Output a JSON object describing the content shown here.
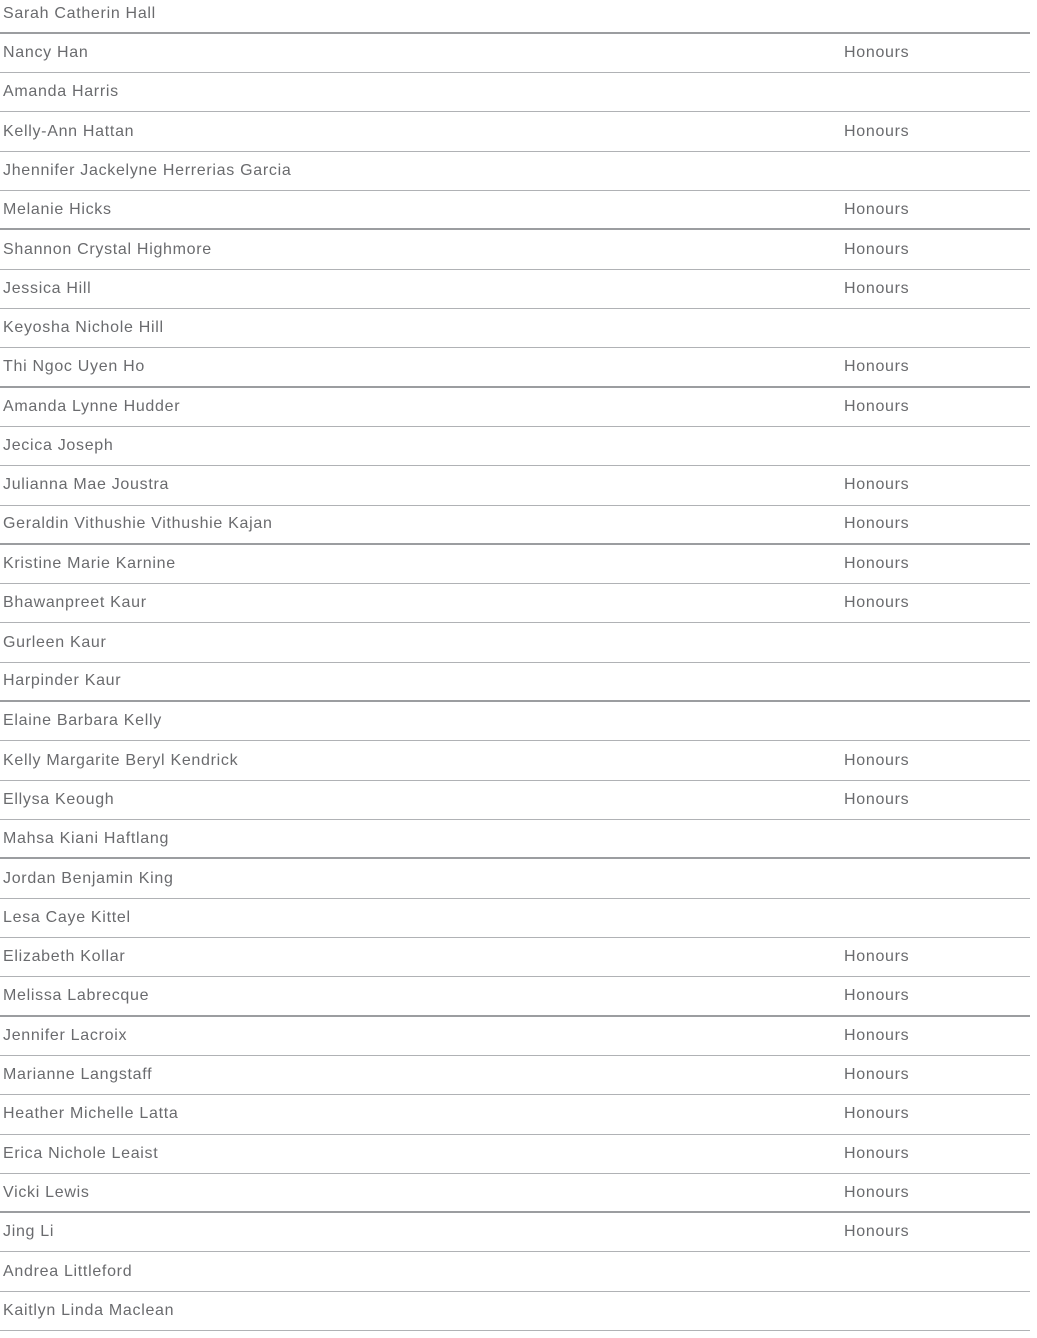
{
  "colors": {
    "background": "#ffffff",
    "text": "#6a6b6e",
    "divider": "#b0b2b5",
    "divider_thick": "#9b9da0"
  },
  "table": {
    "honours_label": "Honours",
    "rows": [
      {
        "name": "Sarah Catherin Hall",
        "honours": false
      },
      {
        "name": "Nancy Han",
        "honours": true
      },
      {
        "name": "Amanda Harris",
        "honours": false
      },
      {
        "name": "Kelly-Ann Hattan",
        "honours": true
      },
      {
        "name": "Jhennifer Jackelyne Herrerias Garcia",
        "honours": false
      },
      {
        "name": "Melanie Hicks",
        "honours": true
      },
      {
        "name": "Shannon Crystal Highmore",
        "honours": true
      },
      {
        "name": "Jessica Hill",
        "honours": true
      },
      {
        "name": "Keyosha Nichole Hill",
        "honours": false
      },
      {
        "name": "Thi Ngoc Uyen Ho",
        "honours": true
      },
      {
        "name": "Amanda Lynne Hudder",
        "honours": true
      },
      {
        "name": "Jecica Joseph",
        "honours": false
      },
      {
        "name": "Julianna Mae Joustra",
        "honours": true
      },
      {
        "name": "Geraldin Vithushie Vithushie Kajan",
        "honours": true
      },
      {
        "name": "Kristine Marie Karnine",
        "honours": true
      },
      {
        "name": "Bhawanpreet Kaur",
        "honours": true
      },
      {
        "name": "Gurleen Kaur",
        "honours": false
      },
      {
        "name": "Harpinder Kaur",
        "honours": false
      },
      {
        "name": "Elaine Barbara Kelly",
        "honours": false
      },
      {
        "name": "Kelly Margarite Beryl Kendrick",
        "honours": true
      },
      {
        "name": "Ellysa Keough",
        "honours": true
      },
      {
        "name": "Mahsa Kiani Haftlang",
        "honours": false
      },
      {
        "name": "Jordan Benjamin King",
        "honours": false
      },
      {
        "name": "Lesa Caye Kittel",
        "honours": false
      },
      {
        "name": "Elizabeth Kollar",
        "honours": true
      },
      {
        "name": "Melissa Labrecque",
        "honours": true
      },
      {
        "name": "Jennifer Lacroix",
        "honours": true
      },
      {
        "name": "Marianne Langstaff",
        "honours": true
      },
      {
        "name": "Heather Michelle Latta",
        "honours": true
      },
      {
        "name": "Erica Nichole Leaist",
        "honours": true
      },
      {
        "name": "Vicki Lewis",
        "honours": true
      },
      {
        "name": "Jing Li",
        "honours": true
      },
      {
        "name": "Andrea Littleford",
        "honours": false
      },
      {
        "name": "Kaitlyn Linda Maclean",
        "honours": false
      }
    ]
  }
}
